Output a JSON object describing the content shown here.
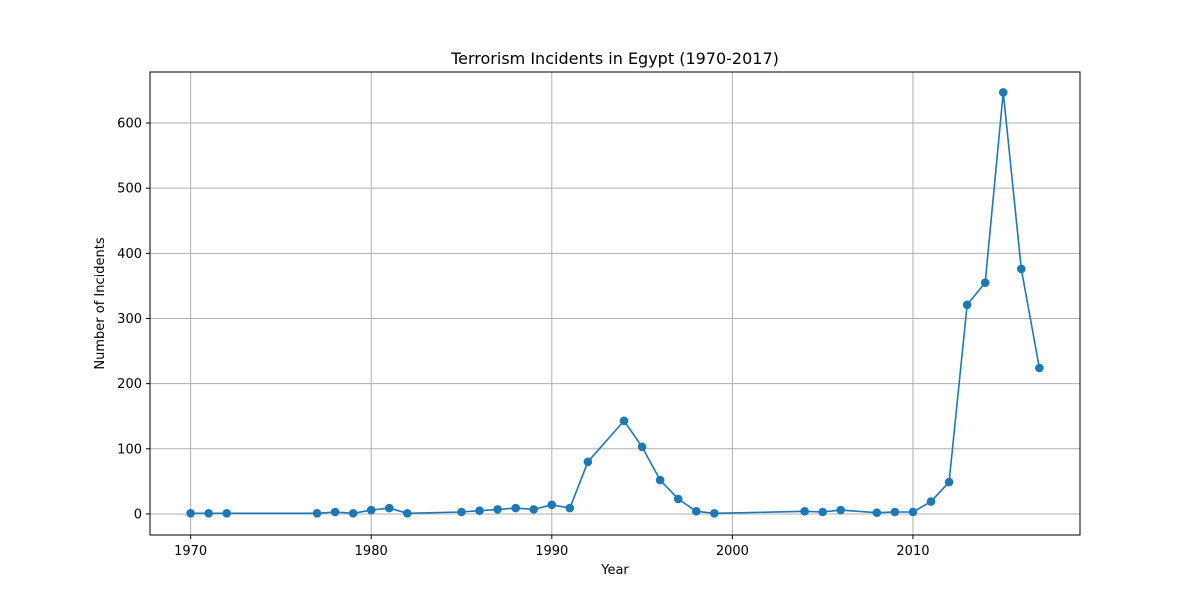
{
  "chart_data": {
    "type": "line",
    "title": "Terrorism Incidents in Egypt (1970-2017)",
    "xlabel": "Year",
    "ylabel": "Number of Incidents",
    "xlim": [
      1967.75,
      2019.25
    ],
    "ylim": [
      -32.3,
      678.3
    ],
    "xticks": [
      1970,
      1980,
      1990,
      2000,
      2010
    ],
    "yticks": [
      0,
      100,
      200,
      300,
      400,
      500,
      600
    ],
    "grid": true,
    "color": "#1f77b4",
    "marker": "circle",
    "series": [
      {
        "name": "Incidents",
        "x": [
          1970,
          1971,
          1972,
          1977,
          1978,
          1979,
          1980,
          1981,
          1982,
          1985,
          1986,
          1987,
          1988,
          1989,
          1990,
          1991,
          1992,
          1994,
          1995,
          1996,
          1997,
          1998,
          1999,
          2004,
          2005,
          2006,
          2008,
          2009,
          2010,
          2011,
          2012,
          2013,
          2014,
          2015,
          2016,
          2017
        ],
        "y": [
          1,
          1,
          1,
          1,
          3,
          1,
          6,
          9,
          1,
          3,
          5,
          7,
          9,
          7,
          14,
          9,
          80,
          143,
          103,
          52,
          23,
          4,
          1,
          4,
          3,
          6,
          2,
          3,
          3,
          19,
          49,
          321,
          355,
          647,
          376,
          224
        ]
      }
    ]
  }
}
